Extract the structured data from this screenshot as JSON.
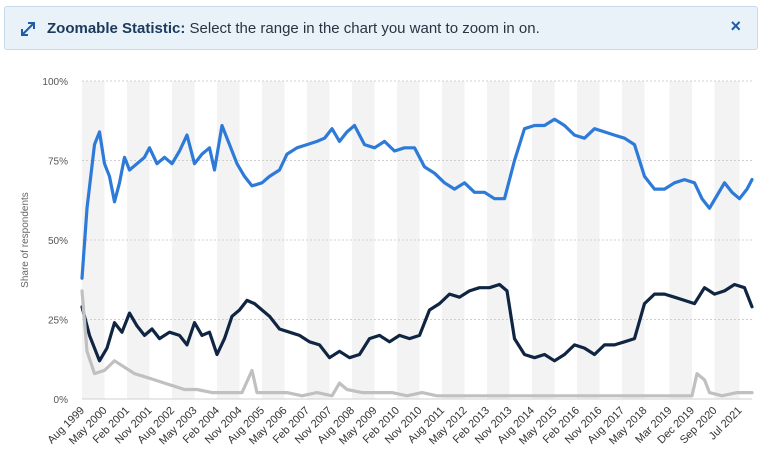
{
  "banner": {
    "title": "Zoomable Statistic:",
    "message": "Select the range in the chart you want to zoom in on.",
    "close_glyph": "×",
    "icon": "expand-arrows-icon"
  },
  "colors": {
    "series_blue": "#2d7ad8",
    "series_navy": "#0f2542",
    "series_gray": "#c0c0c0",
    "banner_bg": "#e9f1f9",
    "band": "#f3f3f3"
  },
  "chart_data": {
    "type": "line",
    "ylabel": "Share of respondents",
    "ylim": [
      0,
      100
    ],
    "ytick_labels": [
      "0%",
      "25%",
      "50%",
      "75%",
      "100%"
    ],
    "ytick_values": [
      0,
      25,
      50,
      75,
      100
    ],
    "x_start": "1999-08",
    "x_end": "2021-12",
    "x_tick_labels": [
      "Aug 1999",
      "May 2000",
      "Feb 2001",
      "Nov 2001",
      "Aug 2002",
      "May 2003",
      "Feb 2004",
      "Nov 2004",
      "Aug 2005",
      "May 2006",
      "Feb 2007",
      "Nov 2007",
      "Aug 2008",
      "May 2009",
      "Feb 2010",
      "Nov 2010",
      "Aug 2011",
      "May 2012",
      "Feb 2013",
      "Nov 2013",
      "Aug 2014",
      "May 2015",
      "Feb 2016",
      "Nov 2016",
      "Aug 2017",
      "May 2018",
      "Mar 2019",
      "Dec 2019",
      "Sep 2020",
      "Jul 2021"
    ],
    "x_tick_dates": [
      "1999-08",
      "2000-05",
      "2001-02",
      "2001-11",
      "2002-08",
      "2003-05",
      "2004-02",
      "2004-11",
      "2005-08",
      "2006-05",
      "2007-02",
      "2007-11",
      "2008-08",
      "2009-05",
      "2010-02",
      "2010-11",
      "2011-08",
      "2012-05",
      "2013-02",
      "2013-11",
      "2014-08",
      "2015-05",
      "2016-02",
      "2016-11",
      "2017-08",
      "2018-05",
      "2019-03",
      "2019-12",
      "2020-09",
      "2021-07"
    ],
    "grid": true,
    "legend": "none",
    "series": [
      {
        "color": "#2d7ad8",
        "points": [
          [
            "1999-08",
            38
          ],
          [
            "1999-10",
            60
          ],
          [
            "2000-01",
            80
          ],
          [
            "2000-03",
            84
          ],
          [
            "2000-05",
            74
          ],
          [
            "2000-07",
            70
          ],
          [
            "2000-09",
            62
          ],
          [
            "2000-11",
            68
          ],
          [
            "2001-01",
            76
          ],
          [
            "2001-03",
            72
          ],
          [
            "2001-06",
            74
          ],
          [
            "2001-09",
            76
          ],
          [
            "2001-11",
            79
          ],
          [
            "2002-02",
            74
          ],
          [
            "2002-05",
            76
          ],
          [
            "2002-08",
            74
          ],
          [
            "2002-11",
            78
          ],
          [
            "2003-02",
            83
          ],
          [
            "2003-05",
            74
          ],
          [
            "2003-08",
            77
          ],
          [
            "2003-11",
            79
          ],
          [
            "2004-01",
            72
          ],
          [
            "2004-04",
            86
          ],
          [
            "2004-07",
            80
          ],
          [
            "2004-10",
            74
          ],
          [
            "2005-01",
            70
          ],
          [
            "2005-04",
            67
          ],
          [
            "2005-08",
            68
          ],
          [
            "2005-11",
            70
          ],
          [
            "2006-03",
            72
          ],
          [
            "2006-06",
            77
          ],
          [
            "2006-10",
            79
          ],
          [
            "2007-02",
            80
          ],
          [
            "2007-06",
            81
          ],
          [
            "2007-09",
            82
          ],
          [
            "2007-12",
            85
          ],
          [
            "2008-03",
            81
          ],
          [
            "2008-06",
            84
          ],
          [
            "2008-09",
            86
          ],
          [
            "2009-01",
            80
          ],
          [
            "2009-05",
            79
          ],
          [
            "2009-09",
            81
          ],
          [
            "2010-01",
            78
          ],
          [
            "2010-05",
            79
          ],
          [
            "2010-09",
            79
          ],
          [
            "2011-01",
            73
          ],
          [
            "2011-05",
            71
          ],
          [
            "2011-09",
            68
          ],
          [
            "2012-01",
            66
          ],
          [
            "2012-05",
            68
          ],
          [
            "2012-09",
            65
          ],
          [
            "2013-01",
            65
          ],
          [
            "2013-05",
            63
          ],
          [
            "2013-09",
            63
          ],
          [
            "2014-01",
            75
          ],
          [
            "2014-05",
            85
          ],
          [
            "2014-09",
            86
          ],
          [
            "2015-01",
            86
          ],
          [
            "2015-05",
            88
          ],
          [
            "2015-09",
            86
          ],
          [
            "2016-01",
            83
          ],
          [
            "2016-05",
            82
          ],
          [
            "2016-09",
            85
          ],
          [
            "2017-01",
            84
          ],
          [
            "2017-05",
            83
          ],
          [
            "2017-09",
            82
          ],
          [
            "2018-01",
            80
          ],
          [
            "2018-05",
            70
          ],
          [
            "2018-09",
            66
          ],
          [
            "2019-01",
            66
          ],
          [
            "2019-05",
            68
          ],
          [
            "2019-09",
            69
          ],
          [
            "2020-01",
            68
          ],
          [
            "2020-04",
            63
          ],
          [
            "2020-07",
            60
          ],
          [
            "2020-10",
            64
          ],
          [
            "2021-01",
            68
          ],
          [
            "2021-04",
            65
          ],
          [
            "2021-07",
            63
          ],
          [
            "2021-10",
            66
          ],
          [
            "2021-12",
            69
          ]
        ]
      },
      {
        "color": "#0f2542",
        "points": [
          [
            "1999-08",
            29
          ],
          [
            "1999-11",
            20
          ],
          [
            "2000-03",
            12
          ],
          [
            "2000-06",
            16
          ],
          [
            "2000-09",
            24
          ],
          [
            "2000-12",
            21
          ],
          [
            "2001-03",
            27
          ],
          [
            "2001-06",
            23
          ],
          [
            "2001-09",
            20
          ],
          [
            "2001-12",
            22
          ],
          [
            "2002-03",
            19
          ],
          [
            "2002-07",
            21
          ],
          [
            "2002-11",
            20
          ],
          [
            "2003-02",
            17
          ],
          [
            "2003-05",
            24
          ],
          [
            "2003-08",
            20
          ],
          [
            "2003-11",
            21
          ],
          [
            "2004-02",
            14
          ],
          [
            "2004-05",
            19
          ],
          [
            "2004-08",
            26
          ],
          [
            "2004-11",
            28
          ],
          [
            "2005-02",
            31
          ],
          [
            "2005-05",
            30
          ],
          [
            "2005-08",
            28
          ],
          [
            "2005-11",
            26
          ],
          [
            "2006-03",
            22
          ],
          [
            "2006-07",
            21
          ],
          [
            "2006-11",
            20
          ],
          [
            "2007-03",
            18
          ],
          [
            "2007-07",
            17
          ],
          [
            "2007-11",
            13
          ],
          [
            "2008-03",
            15
          ],
          [
            "2008-07",
            13
          ],
          [
            "2008-11",
            14
          ],
          [
            "2009-03",
            19
          ],
          [
            "2009-07",
            20
          ],
          [
            "2009-11",
            18
          ],
          [
            "2010-03",
            20
          ],
          [
            "2010-07",
            19
          ],
          [
            "2010-11",
            20
          ],
          [
            "2011-03",
            28
          ],
          [
            "2011-07",
            30
          ],
          [
            "2011-11",
            33
          ],
          [
            "2012-03",
            32
          ],
          [
            "2012-07",
            34
          ],
          [
            "2012-11",
            35
          ],
          [
            "2013-03",
            35
          ],
          [
            "2013-07",
            36
          ],
          [
            "2013-10",
            34
          ],
          [
            "2014-01",
            19
          ],
          [
            "2014-05",
            14
          ],
          [
            "2014-09",
            13
          ],
          [
            "2015-01",
            14
          ],
          [
            "2015-05",
            12
          ],
          [
            "2015-09",
            14
          ],
          [
            "2016-01",
            17
          ],
          [
            "2016-05",
            16
          ],
          [
            "2016-09",
            14
          ],
          [
            "2017-01",
            17
          ],
          [
            "2017-05",
            17
          ],
          [
            "2017-09",
            18
          ],
          [
            "2018-01",
            19
          ],
          [
            "2018-05",
            30
          ],
          [
            "2018-09",
            33
          ],
          [
            "2019-01",
            33
          ],
          [
            "2019-05",
            32
          ],
          [
            "2019-09",
            31
          ],
          [
            "2020-01",
            30
          ],
          [
            "2020-05",
            35
          ],
          [
            "2020-09",
            33
          ],
          [
            "2021-01",
            34
          ],
          [
            "2021-05",
            36
          ],
          [
            "2021-09",
            35
          ],
          [
            "2021-12",
            29
          ]
        ]
      },
      {
        "color": "#c0c0c0",
        "points": [
          [
            "1999-08",
            34
          ],
          [
            "1999-10",
            15
          ],
          [
            "2000-01",
            8
          ],
          [
            "2000-05",
            9
          ],
          [
            "2000-09",
            12
          ],
          [
            "2001-01",
            10
          ],
          [
            "2001-05",
            8
          ],
          [
            "2001-09",
            7
          ],
          [
            "2002-01",
            6
          ],
          [
            "2002-05",
            5
          ],
          [
            "2002-09",
            4
          ],
          [
            "2003-01",
            3
          ],
          [
            "2003-06",
            3
          ],
          [
            "2003-12",
            2
          ],
          [
            "2004-06",
            2
          ],
          [
            "2004-12",
            2
          ],
          [
            "2005-04",
            9
          ],
          [
            "2005-06",
            2
          ],
          [
            "2005-12",
            2
          ],
          [
            "2006-06",
            2
          ],
          [
            "2006-12",
            1
          ],
          [
            "2007-06",
            2
          ],
          [
            "2007-12",
            1
          ],
          [
            "2008-03",
            5
          ],
          [
            "2008-06",
            3
          ],
          [
            "2008-12",
            2
          ],
          [
            "2009-06",
            2
          ],
          [
            "2009-12",
            2
          ],
          [
            "2010-06",
            1
          ],
          [
            "2010-12",
            2
          ],
          [
            "2011-06",
            1
          ],
          [
            "2011-12",
            1
          ],
          [
            "2012-06",
            1
          ],
          [
            "2012-12",
            1
          ],
          [
            "2013-06",
            1
          ],
          [
            "2013-12",
            1
          ],
          [
            "2014-06",
            1
          ],
          [
            "2014-12",
            1
          ],
          [
            "2015-06",
            1
          ],
          [
            "2015-12",
            1
          ],
          [
            "2016-06",
            1
          ],
          [
            "2016-12",
            1
          ],
          [
            "2017-06",
            1
          ],
          [
            "2017-12",
            1
          ],
          [
            "2018-06",
            1
          ],
          [
            "2018-12",
            1
          ],
          [
            "2019-06",
            1
          ],
          [
            "2019-12",
            1
          ],
          [
            "2020-02",
            8
          ],
          [
            "2020-05",
            6
          ],
          [
            "2020-07",
            2
          ],
          [
            "2020-12",
            1
          ],
          [
            "2021-06",
            2
          ],
          [
            "2021-12",
            2
          ]
        ]
      }
    ]
  }
}
